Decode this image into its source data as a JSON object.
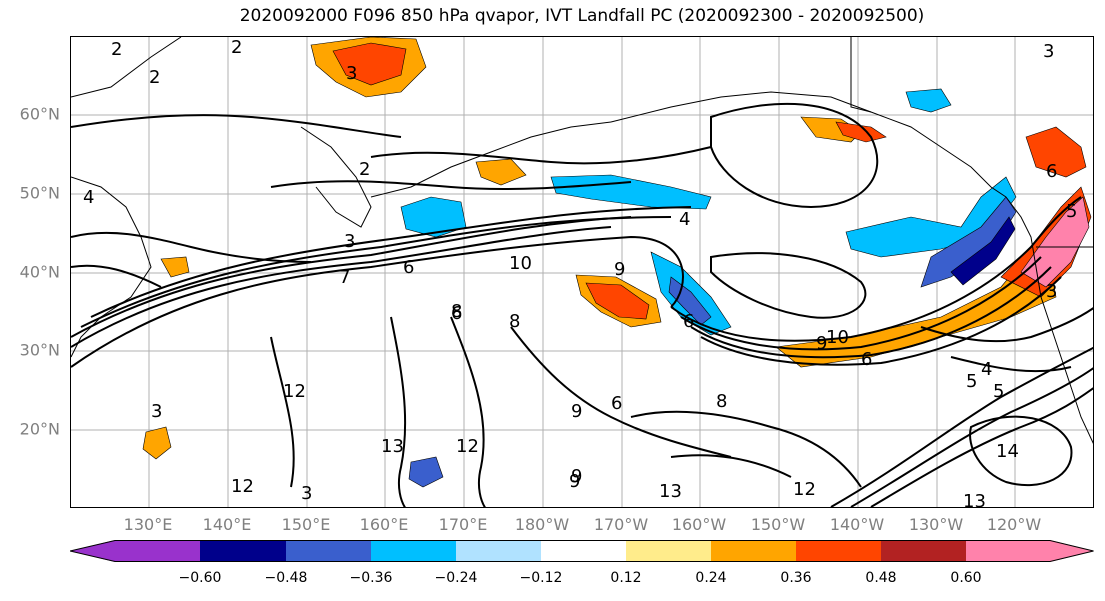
{
  "title": "2020092000 F096 850 hPa qvapor, IVT Landfall PC (2020092300 - 2020092500)",
  "lat_labels": [
    "60°N",
    "50°N",
    "40°N",
    "30°N",
    "20°N"
  ],
  "lon_labels": [
    "130°E",
    "140°E",
    "150°E",
    "160°E",
    "170°E",
    "180°W",
    "170°W",
    "160°W",
    "150°W",
    "140°W",
    "130°W",
    "120°W"
  ],
  "colorbar": {
    "colors": [
      "#9932cc",
      "#00008b",
      "#3a5fcd",
      "#00bfff",
      "#b0e2ff",
      "#ffffff",
      "#ffec8b",
      "#ffa500",
      "#ff4500",
      "#b22222",
      "#ff82ab"
    ],
    "ticks": [
      "−0.60",
      "−0.48",
      "−0.36",
      "−0.24",
      "−0.12",
      "0.12",
      "0.24",
      "0.36",
      "0.48",
      "0.60"
    ]
  },
  "contour_labels": [
    "2",
    "2",
    "3",
    "2",
    "3",
    "4",
    "6",
    "7",
    "6",
    "10",
    "9",
    "4",
    "3",
    "12",
    "13",
    "12",
    "3",
    "9",
    "6",
    "6",
    "13",
    "8",
    "4",
    "5",
    "14",
    "12",
    "13",
    "10",
    "6",
    "5",
    "3",
    "9",
    "8",
    "6",
    "2",
    "8",
    "3",
    "12",
    "9",
    "5",
    "9"
  ]
}
